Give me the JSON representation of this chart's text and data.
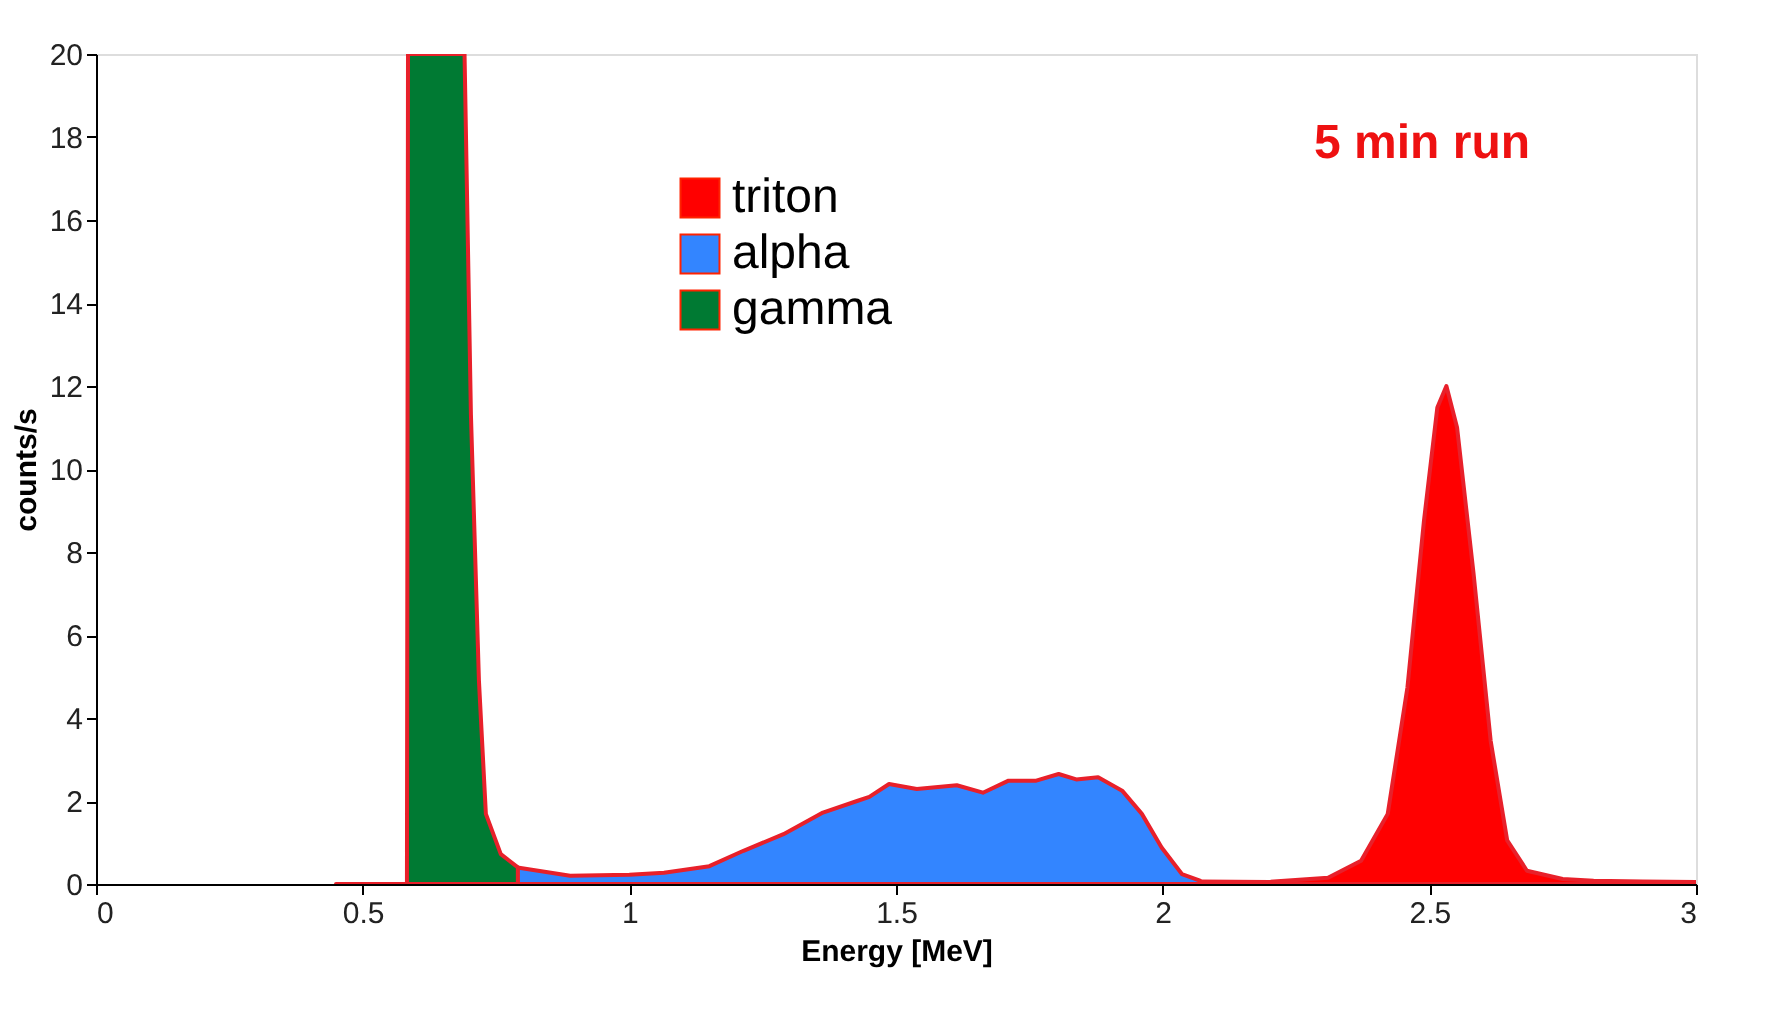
{
  "chart_data": {
    "type": "area",
    "xlabel": "Energy [MeV]",
    "ylabel": "counts/s",
    "xlim": [
      0,
      3
    ],
    "ylim": [
      0,
      20
    ],
    "xticks": [
      0,
      0.5,
      1,
      1.5,
      2,
      2.5,
      3
    ],
    "yticks": [
      0,
      2,
      4,
      6,
      8,
      10,
      12,
      14,
      16,
      18,
      20
    ],
    "grid": false,
    "legend": "top",
    "annotations": [
      "5 min run"
    ],
    "series": [
      {
        "name": "triton",
        "color": "#ff0000",
        "x": [
          2.07,
          2.2,
          2.31,
          2.372,
          2.422,
          2.459,
          2.49,
          2.515,
          2.532,
          2.552,
          2.583,
          2.615,
          2.646,
          2.683,
          2.75,
          2.808,
          2.9,
          3.0
        ],
        "values": [
          0.06,
          0.05,
          0.15,
          0.56,
          1.69,
          4.74,
          8.76,
          11.48,
          12,
          11.0,
          7.47,
          3.45,
          1.05,
          0.32,
          0.12,
          0.08,
          0.06,
          0.05
        ]
      },
      {
        "name": "alpha",
        "color": "#3385ff",
        "x": [
          0.79,
          0.889,
          1.0,
          1.065,
          1.15,
          1.214,
          1.289,
          1.363,
          1.427,
          1.45,
          1.487,
          1.539,
          1.614,
          1.663,
          1.711,
          1.763,
          1.805,
          1.838,
          1.879,
          1.924,
          1.961,
          1.998,
          2.036,
          2.07
        ],
        "values": [
          0.4,
          0.2,
          0.22,
          0.27,
          0.43,
          0.8,
          1.2,
          1.72,
          2.0,
          2.1,
          2.41,
          2.29,
          2.38,
          2.2,
          2.49,
          2.49,
          2.65,
          2.52,
          2.57,
          2.25,
          1.69,
          0.88,
          0.24,
          0.08
        ]
      },
      {
        "name": "gamma",
        "color": "#007a33",
        "x": [
          0.45,
          0.583,
          0.585,
          0.691,
          0.703,
          0.718,
          0.731,
          0.759,
          0.791
        ],
        "values": [
          0,
          0,
          20,
          20,
          11.3,
          4.9,
          1.69,
          0.72,
          0.4
        ]
      }
    ]
  }
}
